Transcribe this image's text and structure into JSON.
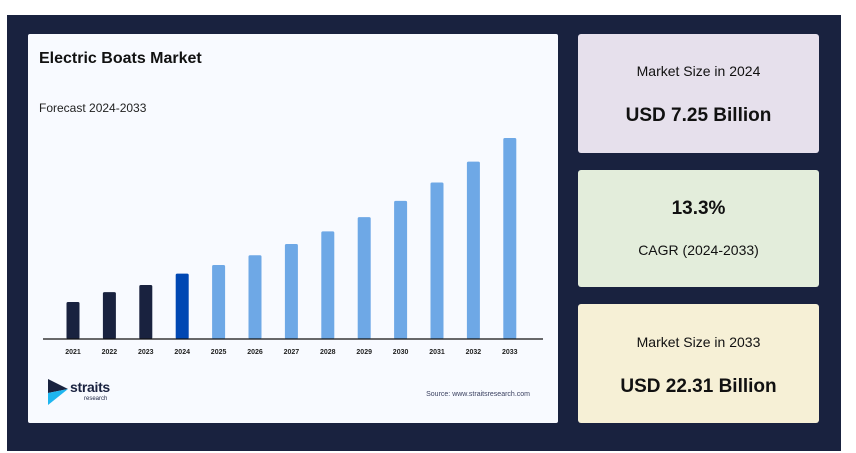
{
  "chart_data": {
    "type": "bar",
    "title": "Electric Boats Market",
    "subtitle": "Forecast 2024-2033",
    "categories": [
      "2021",
      "2022",
      "2023",
      "2024",
      "2025",
      "2026",
      "2027",
      "2028",
      "2029",
      "2030",
      "2031",
      "2032",
      "2033"
    ],
    "values": [
      4.1,
      5.2,
      6.0,
      7.25,
      8.21,
      9.3,
      10.54,
      11.94,
      13.53,
      15.33,
      17.37,
      19.69,
      22.31
    ],
    "unit": "USD Billion",
    "ylim": [
      0,
      22.31
    ],
    "grid": false,
    "colors": {
      "historical": "#19223f",
      "base_year": "#0047b3",
      "forecast": "#6ea8e6"
    },
    "bar_roles": [
      "historical",
      "historical",
      "historical",
      "base_year",
      "forecast",
      "forecast",
      "forecast",
      "forecast",
      "forecast",
      "forecast",
      "forecast",
      "forecast",
      "forecast"
    ]
  },
  "footer": {
    "logo_text": "straits",
    "logo_subtext": "research",
    "source": "Source: www.straitsresearch.com"
  },
  "cards": [
    {
      "label": "Market Size in 2024",
      "value": "USD 7.25 Billion",
      "bg": "#e6e0ec"
    },
    {
      "label": "CAGR (2024-2033)",
      "value": "13.3%",
      "bg": "#e3eddb"
    },
    {
      "label": "Market Size in 2033",
      "value": "USD 22.31 Billion",
      "bg": "#f6f0d6"
    }
  ]
}
